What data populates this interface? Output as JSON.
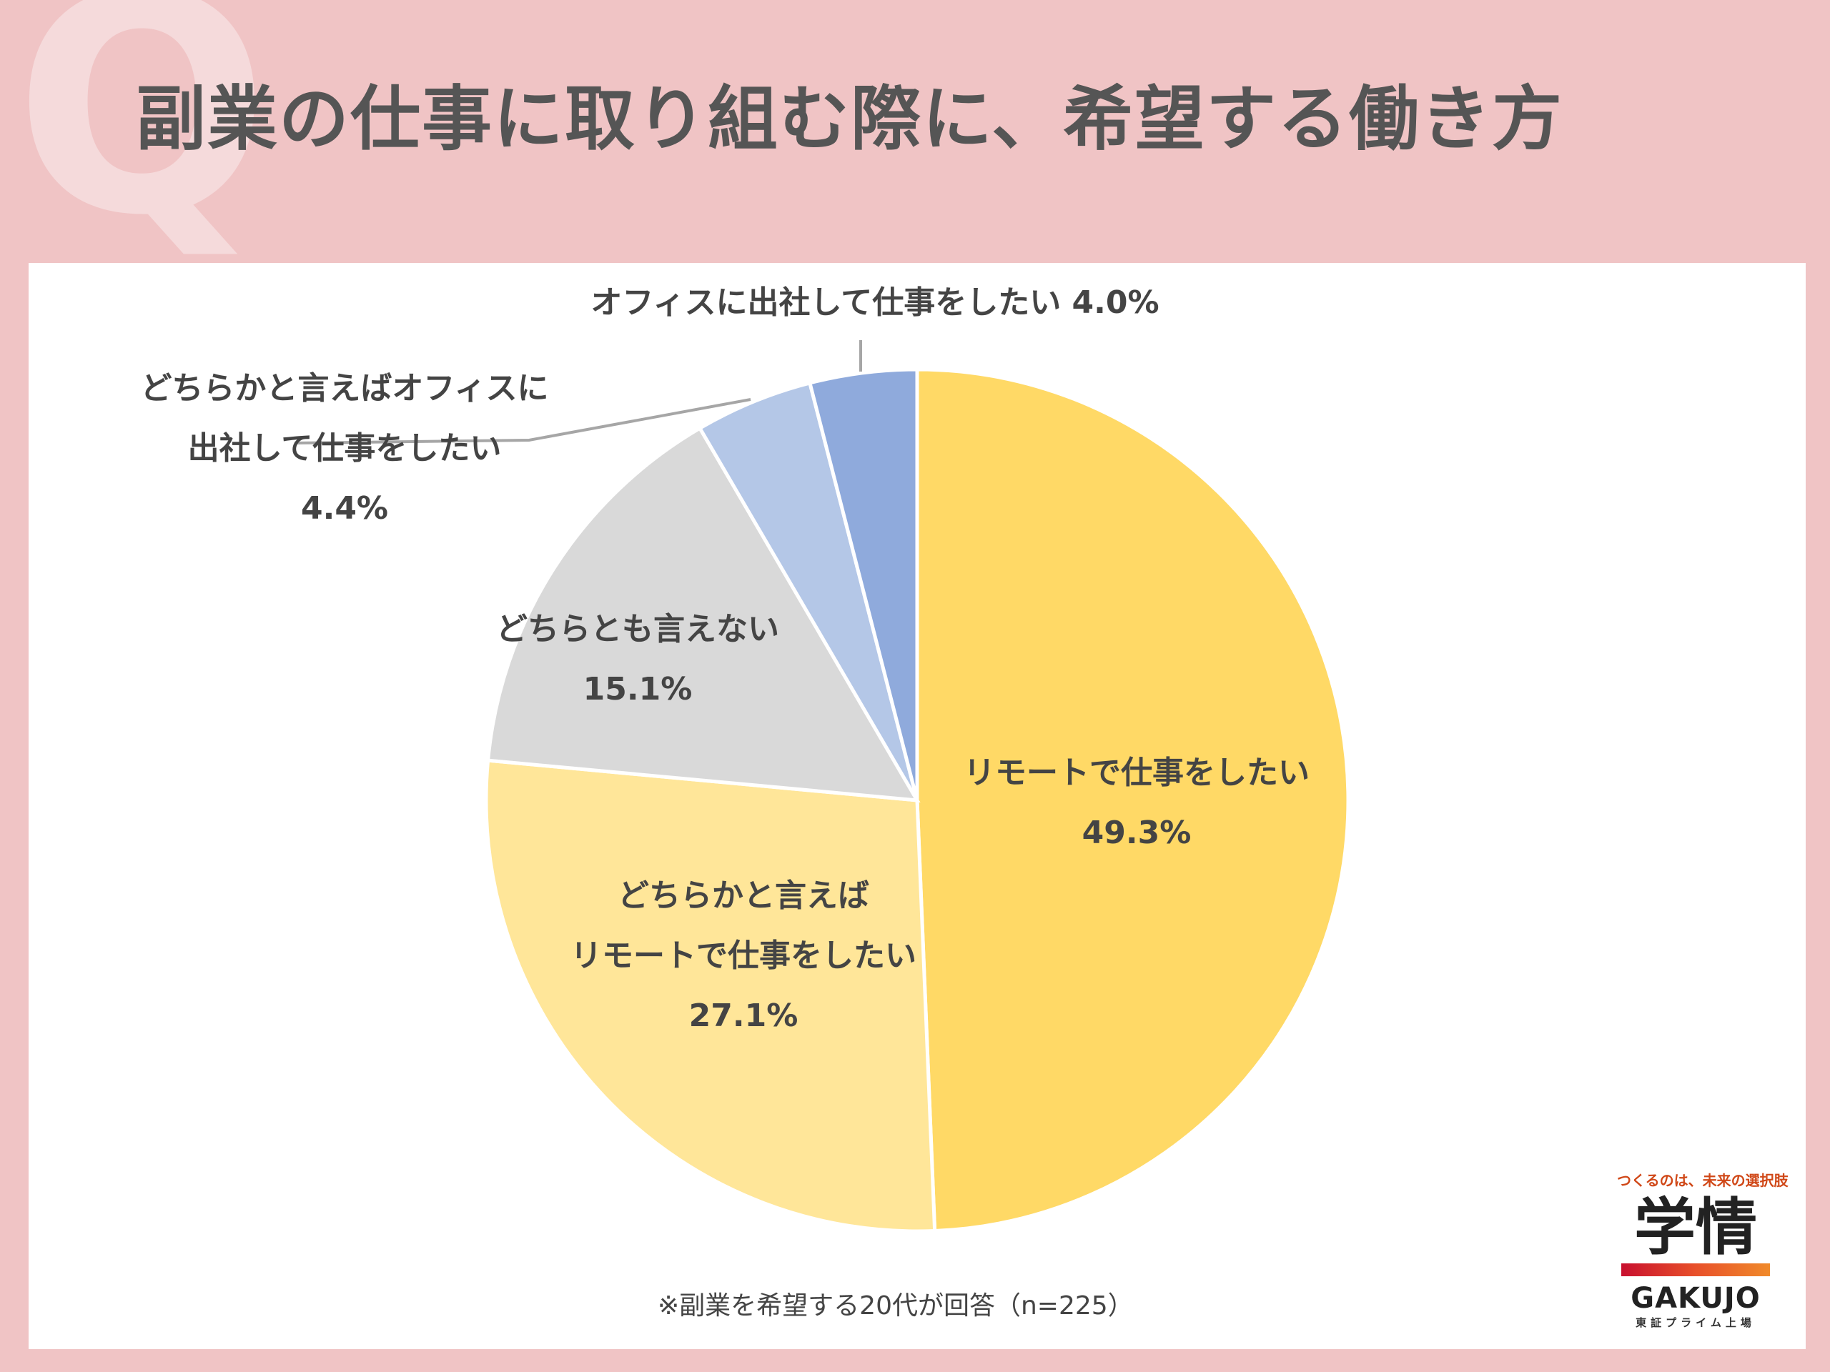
{
  "header": {
    "title": "副業の仕事に取り組む際に、希望する働き方",
    "watermark": "Q"
  },
  "chart_data": {
    "type": "pie",
    "title": "副業の仕事に取り組む際に、希望する働き方",
    "start_angle_deg": 0,
    "direction": "clockwise",
    "slices": [
      {
        "label": "リモートで仕事をしたい",
        "value": 49.3,
        "value_label": "49.3%",
        "color": "#ffd966"
      },
      {
        "label": "どちらかと言えばリモートで仕事をしたい",
        "value": 27.1,
        "value_label": "27.1%",
        "color": "#ffe699"
      },
      {
        "label": "どちらとも言えない",
        "value": 15.1,
        "value_label": "15.1%",
        "color": "#d9d9d9"
      },
      {
        "label": "どちらかと言えばオフィスに出社して仕事をしたい",
        "value": 4.4,
        "value_label": "4.4%",
        "color": "#b4c7e7"
      },
      {
        "label": "オフィスに出社して仕事をしたい",
        "value": 4.0,
        "value_label": "4.0%",
        "color": "#8faadc"
      }
    ],
    "data_labels": [
      {
        "lines": [
          "リモートで仕事をしたい",
          "49.3%"
        ]
      },
      {
        "lines": [
          "どちらかと言えば",
          "リモートで仕事をしたい",
          "27.1%"
        ]
      },
      {
        "lines": [
          "どちらとも言えない",
          "15.1%"
        ]
      },
      {
        "lines": [
          "どちらかと言えばオフィスに",
          "出社して仕事をしたい",
          "4.4%"
        ]
      },
      {
        "lines": [
          "オフィスに出社して仕事をしたい 4.0%"
        ]
      }
    ]
  },
  "footnote": "※副業を希望する20代が回答（n=225）",
  "logo": {
    "tagline": "つくるのは、未来の選択肢",
    "mark": "学情",
    "name": "GAKUJO",
    "sub": "東証プライム上場"
  }
}
